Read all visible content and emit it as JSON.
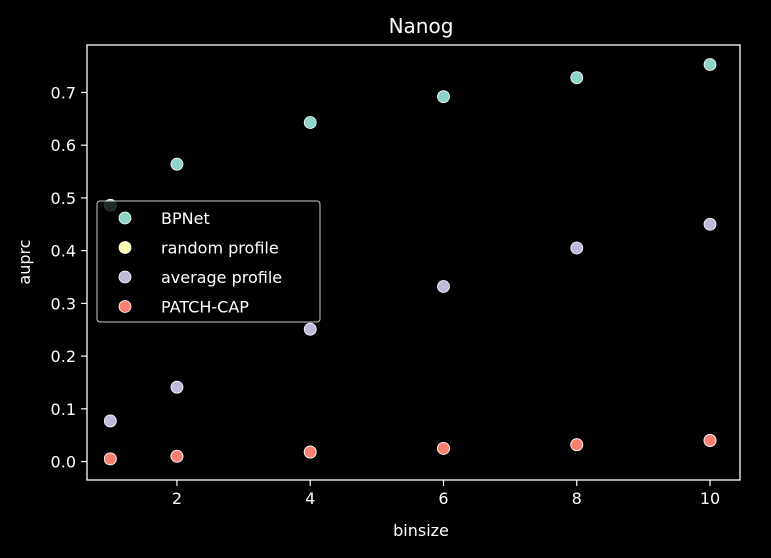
{
  "chart_data": {
    "type": "scatter",
    "title": "Nanog",
    "xlabel": "binsize",
    "ylabel": "auprc",
    "xlim": [
      0.65,
      10.45
    ],
    "ylim": [
      -0.035,
      0.79
    ],
    "x_ticks": [
      2,
      4,
      6,
      8,
      10
    ],
    "y_ticks": [
      0.0,
      0.1,
      0.2,
      0.3,
      0.4,
      0.5,
      0.6,
      0.7
    ],
    "y_tick_labels": [
      "0.0",
      "0.1",
      "0.2",
      "0.3",
      "0.4",
      "0.5",
      "0.6",
      "0.7"
    ],
    "x_tick_labels": [
      "2",
      "4",
      "6",
      "8",
      "10"
    ],
    "grid": false,
    "legend_position": "center-left",
    "series": [
      {
        "name": "BPNet",
        "color": "#8dd3c7",
        "x": [
          1,
          2,
          4,
          6,
          8,
          10
        ],
        "y": [
          0.486,
          0.564,
          0.643,
          0.692,
          0.728,
          0.753
        ]
      },
      {
        "name": "random profile",
        "color": "#ffffb3",
        "x": [
          1,
          2,
          4,
          6,
          8,
          10
        ],
        "y": [
          0.005,
          0.01,
          0.018,
          0.025,
          0.032,
          0.04
        ]
      },
      {
        "name": "average profile",
        "color": "#bebada",
        "x": [
          1,
          2,
          4,
          6,
          8,
          10
        ],
        "y": [
          0.077,
          0.141,
          0.251,
          0.332,
          0.405,
          0.45
        ]
      },
      {
        "name": "PATCH-CAP",
        "color": "#fb8072",
        "x": [
          1,
          2,
          4,
          6,
          8,
          10
        ],
        "y": [
          0.005,
          0.01,
          0.018,
          0.025,
          0.032,
          0.04
        ]
      }
    ]
  }
}
